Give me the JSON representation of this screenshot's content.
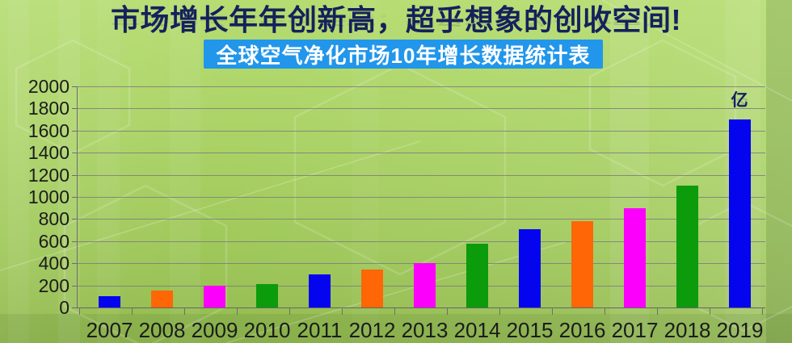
{
  "header": {
    "title": "市场增长年年创新高，超乎想象的创收空间!",
    "subtitle": "全球空气净化市场10年增长数据统计表"
  },
  "chart_data": {
    "type": "bar",
    "title": "全球空气净化市场10年增长数据统计表",
    "unit_label": "亿",
    "categories": [
      "2007",
      "2008",
      "2009",
      "2010",
      "2011",
      "2012",
      "2013",
      "2014",
      "2015",
      "2016",
      "2017",
      "2018",
      "2019"
    ],
    "values": [
      100,
      150,
      200,
      210,
      300,
      340,
      400,
      580,
      710,
      780,
      900,
      1100,
      1700
    ],
    "bar_colors_cycle": [
      "#0404ee",
      "#ff6606",
      "#fb00fb",
      "#0b9b0b"
    ],
    "xlabel": "",
    "ylabel": "",
    "ylim": [
      0,
      2000
    ],
    "ytick_interval": 200,
    "ytick_labels": [
      "0",
      "200",
      "400",
      "600",
      "800",
      "1000",
      "1200",
      "1400",
      "1600",
      "1800",
      "2000"
    ],
    "grid": "horizontal",
    "legend": "none"
  },
  "colors": {
    "banner_bg": "#2196ea",
    "title_text": "#14215c",
    "unit_text": "#14215c",
    "axis_text": "#1c1c1c",
    "grid_line": "#7c7c7c"
  }
}
